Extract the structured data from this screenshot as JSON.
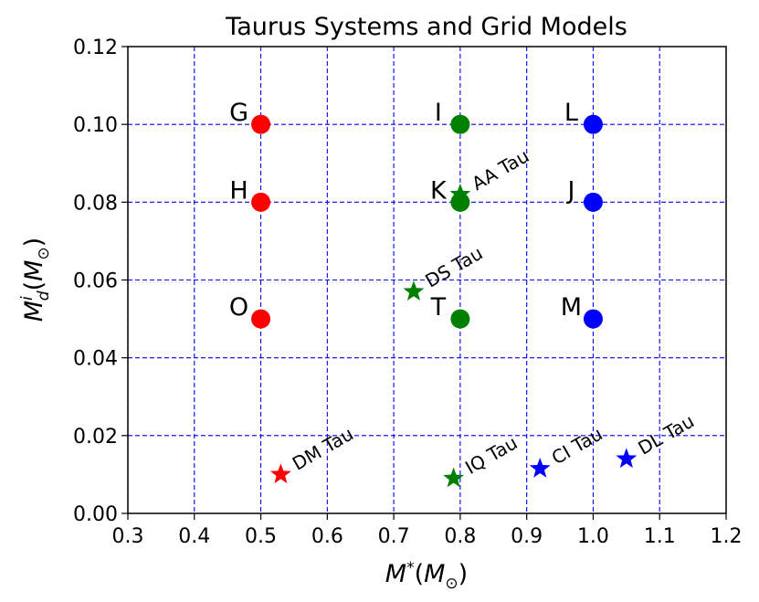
{
  "chart_data": {
    "type": "scatter",
    "title": "Taurus Systems and Grid Models",
    "xlabel": "M*(M⊙)",
    "ylabel": "Md^i(M⊙)",
    "xlim": [
      0.3,
      1.2
    ],
    "ylim": [
      0.0,
      0.12
    ],
    "xticks": [
      0.3,
      0.4,
      0.5,
      0.6,
      0.7,
      0.8,
      0.9,
      1.0,
      1.1,
      1.2
    ],
    "yticks": [
      0.0,
      0.02,
      0.04,
      0.06,
      0.08,
      0.1,
      0.12
    ],
    "xtick_labels": [
      "0.3",
      "0.4",
      "0.5",
      "0.6",
      "0.7",
      "0.8",
      "0.9",
      "1.0",
      "1.1",
      "1.2"
    ],
    "ytick_labels": [
      "0.00",
      "0.02",
      "0.04",
      "0.06",
      "0.08",
      "0.10",
      "0.12"
    ],
    "grid": true,
    "grid_style": "dashed",
    "grid_color": "#0000ff",
    "grid_models": [
      {
        "label": "G",
        "x": 0.5,
        "y": 0.1,
        "color": "#ff0000"
      },
      {
        "label": "H",
        "x": 0.5,
        "y": 0.08,
        "color": "#ff0000"
      },
      {
        "label": "O",
        "x": 0.5,
        "y": 0.05,
        "color": "#ff0000"
      },
      {
        "label": "I",
        "x": 0.8,
        "y": 0.1,
        "color": "#008000"
      },
      {
        "label": "K",
        "x": 0.8,
        "y": 0.08,
        "color": "#008000"
      },
      {
        "label": "T",
        "x": 0.8,
        "y": 0.05,
        "color": "#008000"
      },
      {
        "label": "L",
        "x": 1.0,
        "y": 0.1,
        "color": "#0000ff"
      },
      {
        "label": "J",
        "x": 1.0,
        "y": 0.08,
        "color": "#0000ff"
      },
      {
        "label": "M",
        "x": 1.0,
        "y": 0.05,
        "color": "#0000ff"
      }
    ],
    "taurus_systems": [
      {
        "label": "AA Tau",
        "x": 0.8,
        "y": 0.082,
        "color": "#008000"
      },
      {
        "label": "DS Tau",
        "x": 0.73,
        "y": 0.057,
        "color": "#008000"
      },
      {
        "label": "DM Tau",
        "x": 0.53,
        "y": 0.01,
        "color": "#ff0000"
      },
      {
        "label": "IQ Tau",
        "x": 0.79,
        "y": 0.009,
        "color": "#008000"
      },
      {
        "label": "CI Tau",
        "x": 0.92,
        "y": 0.0115,
        "color": "#0000ff"
      },
      {
        "label": "DL Tau",
        "x": 1.05,
        "y": 0.014,
        "color": "#0000ff"
      }
    ]
  }
}
